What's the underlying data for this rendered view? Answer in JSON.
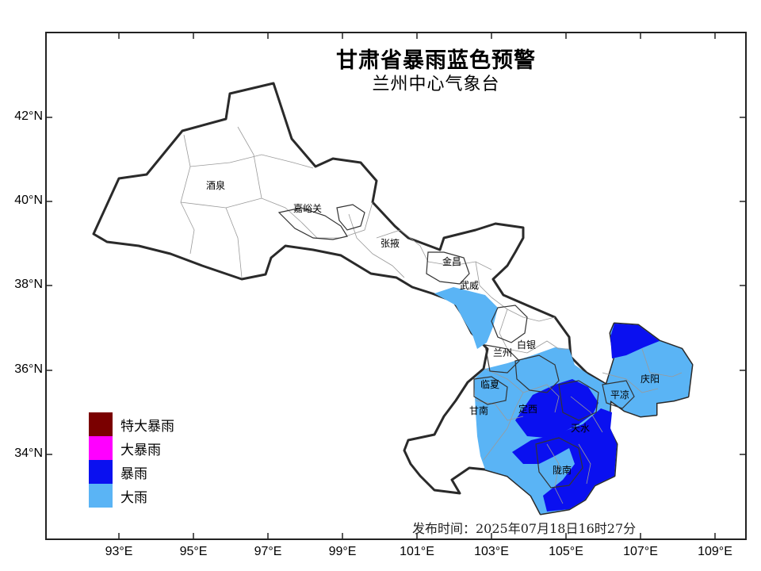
{
  "map": {
    "title": "甘肃省暴雨蓝色预警",
    "subtitle": "兰州中心气象台",
    "issue_time": "发布时间：2025年07月18日16时27分",
    "latitude_labels": [
      "42°N",
      "40°N",
      "38°N",
      "36°N",
      "34°N"
    ],
    "longitude_labels": [
      "93°E",
      "95°E",
      "97°E",
      "99°E",
      "101°E",
      "103°E",
      "105°E",
      "107°E",
      "109°E"
    ],
    "cities": {
      "jiuquan": "酒泉",
      "jiayuguan": "嘉峪关",
      "zhangye": "张掖",
      "jinchang": "金昌",
      "wuwei": "武威",
      "lanzhou": "兰州",
      "baiyin": "白银",
      "linxia": "临夏",
      "gannan": "甘南",
      "dingxi": "定西",
      "tianshui": "天水",
      "longnan": "陇南",
      "pingliang": "平凉",
      "qingyang": "庆阳"
    },
    "legend": [
      {
        "label": "特大暴雨",
        "color": "#7a0000"
      },
      {
        "label": "大暴雨",
        "color": "#ff00ff"
      },
      {
        "label": "暴雨",
        "color": "#0a10f0"
      },
      {
        "label": "大雨",
        "color": "#5ab4f5"
      }
    ],
    "colors": {
      "province_outline": "#2a2a2a",
      "county_border": "#9a9a9a",
      "heavy_rain": "#5ab4f5",
      "rainstorm": "#0a10f0"
    }
  }
}
